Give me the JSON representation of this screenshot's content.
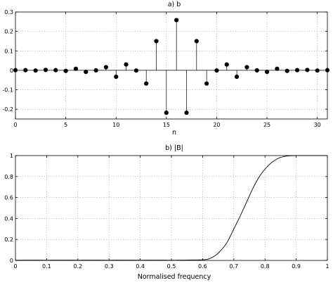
{
  "chart_data": [
    {
      "type": "stem",
      "title": "a) b",
      "xlabel": "n",
      "ylabel": "",
      "xlim": [
        0,
        31
      ],
      "ylim": [
        -0.25,
        0.3
      ],
      "xticks": [
        0,
        5,
        10,
        15,
        20,
        25,
        30
      ],
      "yticks": [
        0.3,
        0.2,
        0.1,
        0,
        -0.1,
        -0.2
      ],
      "grid": true,
      "x": [
        0,
        1,
        2,
        3,
        4,
        5,
        6,
        7,
        8,
        9,
        10,
        11,
        12,
        13,
        14,
        15,
        16,
        17,
        18,
        19,
        20,
        21,
        22,
        23,
        24,
        25,
        26,
        27,
        28,
        29,
        30,
        31
      ],
      "values": [
        0.001,
        0.001,
        -0.001,
        0.002,
        0.001,
        -0.003,
        0.008,
        -0.008,
        0.0,
        0.016,
        -0.033,
        0.03,
        -0.001,
        -0.068,
        0.15,
        -0.218,
        0.258,
        -0.218,
        0.15,
        -0.068,
        -0.001,
        0.03,
        -0.033,
        0.016,
        0.0,
        -0.008,
        0.008,
        -0.003,
        0.001,
        0.002,
        -0.001,
        0.001
      ]
    },
    {
      "type": "line",
      "title": "b) |B|",
      "xlabel": "Normalised frequency",
      "ylabel": "",
      "xlim": [
        0,
        1
      ],
      "ylim": [
        0,
        1
      ],
      "xticks": [
        0,
        0.1,
        0.2,
        0.3,
        0.4,
        0.5,
        0.6,
        0.7,
        0.8,
        0.9,
        1
      ],
      "yticks": [
        1,
        0.8,
        0.6,
        0.4,
        0.2,
        0
      ],
      "grid": true,
      "x": [
        0,
        0.05,
        0.1,
        0.15,
        0.2,
        0.25,
        0.3,
        0.35,
        0.4,
        0.45,
        0.5,
        0.55,
        0.6,
        0.62,
        0.64,
        0.66,
        0.68,
        0.7,
        0.72,
        0.74,
        0.76,
        0.78,
        0.8,
        0.82,
        0.84,
        0.86,
        0.88,
        0.9,
        0.92,
        0.95,
        1.0
      ],
      "values": [
        0.002,
        0.003,
        0.002,
        0.003,
        0.002,
        0.003,
        0.002,
        0.003,
        0.002,
        0.003,
        0.002,
        0.004,
        0.006,
        0.015,
        0.045,
        0.1,
        0.18,
        0.3,
        0.42,
        0.55,
        0.68,
        0.79,
        0.87,
        0.93,
        0.97,
        0.99,
        0.998,
        1.0,
        1.0,
        1.0,
        1.0
      ]
    }
  ]
}
